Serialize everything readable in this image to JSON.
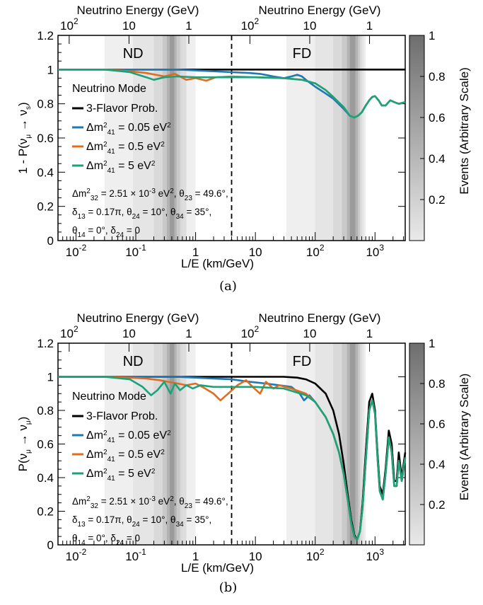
{
  "chart_data": [
    {
      "type": "line",
      "panel_caption": "(a)",
      "ylabel": "1 - P(ν_μ → ν_s)",
      "ylabel_main": "1 - P(ν",
      "ylabel_sub1": "μ",
      "ylabel_arrow": " → ν",
      "ylabel_sub2": "s",
      "ylabel_end": ")",
      "xlabel": "L/E (km/GeV)",
      "top_axis_left_label": "Neutrino Energy (GeV)",
      "top_axis_right_label": "Neutrino Energy (GeV)",
      "colorbar_label": "Events (Arbitrary Scale)",
      "x_scale": "log",
      "xlim": [
        0.005,
        3200
      ],
      "ylim": [
        0,
        1.2
      ],
      "y_ticks": [
        "0",
        "0.2",
        "0.4",
        "0.6",
        "0.8",
        "1",
        "1.2"
      ],
      "x_ticks": [
        {
          "base": "10",
          "exp": "-2"
        },
        {
          "base": "10",
          "exp": "-1"
        },
        {
          "base": "1",
          "exp": ""
        },
        {
          "base": "10",
          "exp": ""
        },
        {
          "base": "10",
          "exp": "2"
        },
        {
          "base": "10",
          "exp": "3"
        }
      ],
      "top_ticks_nd": [
        {
          "base": "10",
          "exp": "2"
        },
        {
          "base": "10",
          "exp": ""
        },
        {
          "base": "1",
          "exp": ""
        }
      ],
      "top_ticks_fd": [
        {
          "base": "10",
          "exp": "2"
        },
        {
          "base": "10",
          "exp": ""
        },
        {
          "base": "1",
          "exp": ""
        }
      ],
      "colorbar_ticks": [
        "0.2",
        "0.4",
        "0.6",
        "0.8",
        "1"
      ],
      "divider_x": 4,
      "region_labels": [
        "ND",
        "FD"
      ],
      "legend_title": "Neutrino Mode",
      "legend": {
        "series0": "3-Flavor Prob.",
        "series1_pre": "Δm",
        "series1_sup": "2",
        "series1_sub": "41",
        "series1_post": " = 0.05 eV",
        "series1_sup2": "2",
        "series2_pre": "Δm",
        "series2_sup": "2",
        "series2_sub": "41",
        "series2_post": " = 0.5 eV",
        "series2_sup2": "2",
        "series3_pre": "Δm",
        "series3_sup": "2",
        "series3_sub": "41",
        "series3_post": " = 5 eV",
        "series3_sup2": "2"
      },
      "params": {
        "l1_a": "Δm",
        "l1_a_sup": "2",
        "l1_a_sub": "32",
        "l1_b": " = 2.51 × 10",
        "l1_b_sup": "-3",
        "l1_c": " eV",
        "l1_c_sup": "2",
        "l1_d": ", θ",
        "l1_d_sub": "23",
        "l1_e": " = 49.6°,",
        "l2_a": "δ",
        "l2_a_sub": "13",
        "l2_b": " = 0.17π, θ",
        "l2_b_sub": "24",
        "l2_c": " = 10°, θ",
        "l2_c_sub": "34",
        "l2_d": " = 35°,",
        "l3_a": "θ",
        "l3_a_sub": "14",
        "l3_b": " = 0°, δ",
        "l3_b_sub": "24",
        "l3_c": " = 0"
      },
      "series": [
        {
          "name": "3-Flavor Prob.",
          "color": "#000000",
          "x": [
            0.005,
            1,
            10,
            100,
            3200
          ],
          "y": [
            1.0,
            1.0,
            1.0,
            1.0,
            1.0
          ]
        },
        {
          "name": "Δm²41 = 0.05 eV²",
          "color": "#1f77b4",
          "x": [
            0.005,
            0.5,
            2,
            4,
            8,
            12,
            20,
            30,
            40,
            50,
            60,
            70,
            80,
            100,
            150,
            200,
            300,
            380,
            450,
            520,
            600,
            700,
            800,
            900,
            1000,
            1150,
            1300,
            1500,
            1800,
            2100,
            2500,
            3200
          ],
          "y": [
            1.0,
            1.0,
            0.99,
            0.985,
            0.98,
            0.975,
            0.96,
            0.95,
            0.96,
            0.97,
            0.96,
            0.94,
            0.925,
            0.9,
            0.86,
            0.83,
            0.77,
            0.73,
            0.72,
            0.73,
            0.75,
            0.79,
            0.82,
            0.84,
            0.845,
            0.82,
            0.79,
            0.79,
            0.82,
            0.81,
            0.8,
            0.81
          ]
        },
        {
          "name": "Δm²41 = 0.5 eV²",
          "color": "#e06c1f",
          "x": [
            0.005,
            0.03,
            0.08,
            0.15,
            0.3,
            0.45,
            0.7,
            1,
            1.5,
            2.2,
            4,
            10,
            30,
            60,
            100,
            150,
            200,
            300,
            380,
            450,
            520,
            600,
            700,
            800,
            900,
            1000,
            1150,
            1300,
            1500,
            1800,
            2100,
            2500,
            3200
          ],
          "y": [
            1.0,
            1.0,
            0.99,
            0.98,
            0.96,
            0.975,
            0.94,
            0.95,
            0.935,
            0.955,
            0.96,
            0.955,
            0.95,
            0.94,
            0.92,
            0.88,
            0.84,
            0.78,
            0.73,
            0.72,
            0.73,
            0.75,
            0.79,
            0.82,
            0.84,
            0.845,
            0.82,
            0.79,
            0.79,
            0.82,
            0.81,
            0.8,
            0.81
          ]
        },
        {
          "name": "Δm²41 = 5 eV²",
          "color": "#1aa37a",
          "x": [
            0.005,
            0.03,
            0.08,
            0.15,
            0.2,
            0.3,
            0.5,
            1,
            4,
            10,
            30,
            60,
            100,
            150,
            200,
            300,
            380,
            450,
            520,
            600,
            700,
            800,
            900,
            1000,
            1150,
            1300,
            1500,
            1800,
            2100,
            2500,
            3200
          ],
          "y": [
            1.0,
            1.0,
            0.985,
            0.955,
            0.94,
            0.955,
            0.96,
            0.955,
            0.955,
            0.955,
            0.95,
            0.94,
            0.92,
            0.88,
            0.84,
            0.78,
            0.73,
            0.72,
            0.73,
            0.75,
            0.79,
            0.82,
            0.84,
            0.845,
            0.82,
            0.79,
            0.79,
            0.82,
            0.81,
            0.8,
            0.81
          ]
        }
      ]
    },
    {
      "type": "line",
      "panel_caption": "(b)",
      "ylabel": "P(ν_μ → ν_μ)",
      "ylabel_main": "P(ν",
      "ylabel_sub1": "μ",
      "ylabel_arrow": " → ν",
      "ylabel_sub2": "μ",
      "ylabel_end": ")",
      "xlabel": "L/E (km/GeV)",
      "top_axis_left_label": "Neutrino Energy (GeV)",
      "top_axis_right_label": "Neutrino Energy (GeV)",
      "colorbar_label": "Events (Arbitrary Scale)",
      "x_scale": "log",
      "xlim": [
        0.005,
        3200
      ],
      "ylim": [
        0,
        1.2
      ],
      "y_ticks": [
        "0",
        "0.2",
        "0.4",
        "0.6",
        "0.8",
        "1",
        "1.2"
      ],
      "x_ticks": [
        {
          "base": "10",
          "exp": "-2"
        },
        {
          "base": "10",
          "exp": "-1"
        },
        {
          "base": "1",
          "exp": ""
        },
        {
          "base": "10",
          "exp": ""
        },
        {
          "base": "10",
          "exp": "2"
        },
        {
          "base": "10",
          "exp": "3"
        }
      ],
      "top_ticks_nd": [
        {
          "base": "10",
          "exp": "2"
        },
        {
          "base": "10",
          "exp": ""
        },
        {
          "base": "1",
          "exp": ""
        }
      ],
      "top_ticks_fd": [
        {
          "base": "10",
          "exp": "2"
        },
        {
          "base": "10",
          "exp": ""
        },
        {
          "base": "1",
          "exp": ""
        }
      ],
      "colorbar_ticks": [
        "0.2",
        "0.4",
        "0.6",
        "0.8",
        "1"
      ],
      "divider_x": 4,
      "region_labels": [
        "ND",
        "FD"
      ],
      "legend_title": "Neutrino Mode",
      "legend": {
        "series0": "3-Flavor Prob.",
        "series1_pre": "Δm",
        "series1_sup": "2",
        "series1_sub": "41",
        "series1_post": " = 0.05 eV",
        "series1_sup2": "2",
        "series2_pre": "Δm",
        "series2_sup": "2",
        "series2_sub": "41",
        "series2_post": " = 0.5 eV",
        "series2_sup2": "2",
        "series3_pre": "Δm",
        "series3_sup": "2",
        "series3_sub": "41",
        "series3_post": " = 5 eV",
        "series3_sup2": "2"
      },
      "params": {
        "l1_a": "Δm",
        "l1_a_sup": "2",
        "l1_a_sub": "32",
        "l1_b": " = 2.51 × 10",
        "l1_b_sup": "-3",
        "l1_c": " eV",
        "l1_c_sup": "2",
        "l1_d": ", θ",
        "l1_d_sub": "23",
        "l1_e": " = 49.6°,",
        "l2_a": "δ",
        "l2_a_sub": "13",
        "l2_b": " = 0.17π, θ",
        "l2_b_sub": "24",
        "l2_c": " = 10°, θ",
        "l2_c_sub": "34",
        "l2_d": " = 35°,",
        "l3_a": "θ",
        "l3_a_sub": "14",
        "l3_b": " = 0°, δ",
        "l3_b_sub": "24",
        "l3_c": " = 0"
      },
      "series": [
        {
          "name": "3-Flavor Prob.",
          "color": "#000000",
          "x": [
            0.005,
            1,
            10,
            30,
            50,
            70,
            100,
            150,
            200,
            250,
            300,
            350,
            400,
            450,
            500,
            560,
            620,
            700,
            800,
            900,
            1000,
            1100,
            1200,
            1350,
            1500,
            1700,
            1900,
            2100,
            2300,
            2500,
            2800,
            3200
          ],
          "y": [
            1.0,
            1.0,
            1.0,
            1.0,
            0.995,
            0.985,
            0.96,
            0.9,
            0.8,
            0.66,
            0.48,
            0.3,
            0.15,
            0.06,
            0.03,
            0.08,
            0.25,
            0.55,
            0.85,
            0.9,
            0.8,
            0.55,
            0.35,
            0.3,
            0.45,
            0.68,
            0.6,
            0.38,
            0.38,
            0.55,
            0.4,
            0.55
          ]
        },
        {
          "name": "Δm²41 = 0.05 eV²",
          "color": "#1f77b4",
          "x": [
            0.005,
            0.5,
            1,
            2,
            4,
            8,
            15,
            25,
            40,
            55,
            65,
            80,
            100,
            150,
            200,
            250,
            300,
            350,
            400,
            450,
            500,
            560,
            620,
            700,
            800,
            900,
            1000,
            1100,
            1200,
            1350,
            1500,
            1700,
            1900,
            2100,
            2300,
            2500,
            2800,
            3200
          ],
          "y": [
            1.0,
            1.0,
            0.995,
            0.99,
            0.985,
            0.97,
            0.96,
            0.95,
            0.94,
            0.9,
            0.86,
            0.89,
            0.85,
            0.76,
            0.66,
            0.55,
            0.42,
            0.27,
            0.13,
            0.05,
            0.03,
            0.08,
            0.22,
            0.5,
            0.8,
            0.86,
            0.78,
            0.52,
            0.32,
            0.27,
            0.42,
            0.64,
            0.55,
            0.35,
            0.35,
            0.5,
            0.38,
            0.52
          ]
        },
        {
          "name": "Δm²41 = 0.5 eV²",
          "color": "#e06c1f",
          "x": [
            0.005,
            0.03,
            0.08,
            0.15,
            0.25,
            0.35,
            0.5,
            0.7,
            1,
            1.3,
            2,
            2.6,
            3.5,
            5,
            7,
            9,
            12,
            15,
            20,
            25,
            40,
            70,
            100,
            150,
            200,
            250,
            300,
            350,
            400,
            450,
            500,
            560,
            620,
            700,
            800,
            900,
            1000,
            1100,
            1200,
            1350,
            1500,
            1700,
            1900,
            2100,
            2300,
            2500,
            2800,
            3200
          ],
          "y": [
            1.0,
            1.0,
            0.995,
            0.99,
            0.98,
            0.97,
            0.96,
            0.95,
            0.96,
            0.94,
            0.9,
            0.86,
            0.9,
            0.95,
            0.98,
            0.94,
            0.9,
            0.97,
            0.93,
            0.95,
            0.93,
            0.9,
            0.85,
            0.76,
            0.66,
            0.55,
            0.42,
            0.27,
            0.13,
            0.05,
            0.03,
            0.08,
            0.22,
            0.5,
            0.8,
            0.86,
            0.78,
            0.52,
            0.32,
            0.27,
            0.42,
            0.64,
            0.55,
            0.35,
            0.35,
            0.5,
            0.38,
            0.52
          ]
        },
        {
          "name": "Δm²41 = 5 eV²",
          "color": "#1aa37a",
          "x": [
            0.005,
            0.03,
            0.08,
            0.13,
            0.18,
            0.23,
            0.3,
            0.38,
            0.45,
            0.55,
            0.7,
            0.9,
            1.2,
            2,
            4,
            10,
            30,
            70,
            100,
            150,
            200,
            250,
            300,
            350,
            400,
            450,
            500,
            560,
            620,
            700,
            800,
            900,
            1000,
            1100,
            1200,
            1350,
            1500,
            1700,
            1900,
            2100,
            2300,
            2500,
            2800,
            3200
          ],
          "y": [
            1.0,
            1.0,
            0.985,
            0.94,
            0.89,
            0.92,
            0.97,
            0.9,
            0.96,
            0.92,
            0.95,
            0.93,
            0.95,
            0.94,
            0.94,
            0.94,
            0.93,
            0.89,
            0.85,
            0.76,
            0.66,
            0.55,
            0.42,
            0.27,
            0.13,
            0.05,
            0.03,
            0.08,
            0.22,
            0.5,
            0.8,
            0.86,
            0.78,
            0.52,
            0.32,
            0.27,
            0.42,
            0.64,
            0.55,
            0.35,
            0.35,
            0.5,
            0.38,
            0.52
          ]
        }
      ]
    }
  ]
}
